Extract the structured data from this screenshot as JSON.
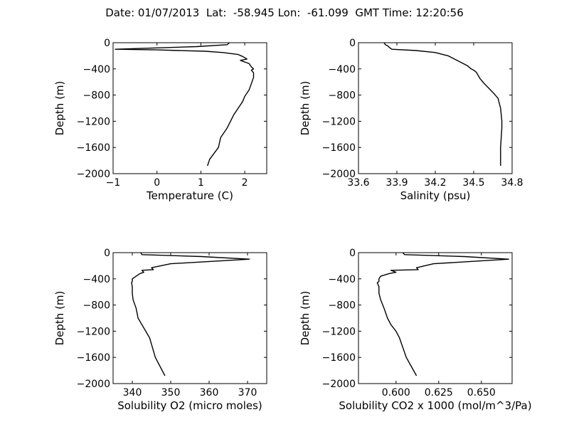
{
  "title": "Date: 01/07/2013  Lat:  -58.945 Lon:  -61.099  GMT Time: 12:20:56",
  "chart_data": [
    {
      "type": "line",
      "xlabel": "Temperature (C)",
      "ylabel": "Depth (m)",
      "xlim": [
        -1,
        2.5
      ],
      "ylim": [
        -2000,
        0
      ],
      "xticks": [
        -1,
        0,
        1,
        2
      ],
      "xtick_labels": [
        "−1",
        "0",
        "1",
        "2"
      ],
      "yticks": [
        0,
        -400,
        -800,
        -1200,
        -1600,
        -2000
      ],
      "ytick_labels": [
        "0",
        "−400",
        "−800",
        "−1200",
        "−1600",
        "−2000"
      ],
      "x": [
        1.65,
        1.6,
        0.9,
        -0.95,
        0.0,
        0.5,
        1.1,
        1.5,
        1.85,
        1.95,
        2.05,
        1.9,
        2.1,
        2.15,
        2.2,
        2.15,
        2.2,
        2.2,
        2.1,
        2.0,
        1.95,
        1.85,
        1.75,
        1.6,
        1.45,
        1.4,
        1.2,
        1.15
      ],
      "y": [
        0,
        -30,
        -60,
        -100,
        -110,
        -120,
        -130,
        -150,
        -180,
        -210,
        -250,
        -270,
        -320,
        -370,
        -400,
        -420,
        -460,
        -530,
        -720,
        -820,
        -900,
        -1000,
        -1100,
        -1300,
        -1450,
        -1600,
        -1780,
        -1880
      ]
    },
    {
      "type": "line",
      "xlabel": "Salinity (psu)",
      "ylabel": "Depth (m)",
      "xlim": [
        33.6,
        34.8
      ],
      "ylim": [
        -2000,
        0
      ],
      "xticks": [
        33.6,
        33.9,
        34.2,
        34.5,
        34.8
      ],
      "xtick_labels": [
        "33.6",
        "33.9",
        "34.2",
        "34.5",
        "34.8"
      ],
      "yticks": [
        0,
        -400,
        -800,
        -1200,
        -1600,
        -2000
      ],
      "ytick_labels": [
        "0",
        "−400",
        "−800",
        "−1200",
        "−1600",
        "−2000"
      ],
      "x": [
        33.8,
        33.81,
        33.83,
        33.84,
        33.86,
        34.05,
        34.2,
        34.3,
        34.35,
        34.4,
        34.45,
        34.48,
        34.5,
        34.52,
        34.55,
        34.58,
        34.62,
        34.66,
        34.69,
        34.71,
        34.72,
        34.72,
        34.71,
        34.71
      ],
      "y": [
        0,
        -30,
        -50,
        -70,
        -100,
        -120,
        -150,
        -200,
        -250,
        -300,
        -350,
        -400,
        -420,
        -450,
        -550,
        -620,
        -700,
        -780,
        -850,
        -1000,
        -1200,
        -1300,
        -1600,
        -1880
      ]
    },
    {
      "type": "line",
      "xlabel": "Solubility O2 (micro moles)",
      "ylabel": "Depth (m)",
      "xlim": [
        335,
        375
      ],
      "ylim": [
        -2000,
        0
      ],
      "xticks": [
        340,
        350,
        360,
        370
      ],
      "xtick_labels": [
        "340",
        "350",
        "360",
        "370"
      ],
      "yticks": [
        0,
        -400,
        -800,
        -1200,
        -1600,
        -2000
      ],
      "ytick_labels": [
        "0",
        "−400",
        "−800",
        "−1200",
        "−1600",
        "−2000"
      ],
      "x": [
        342.2,
        342.5,
        358,
        370.5,
        350,
        345,
        345.5,
        342.5,
        343,
        342,
        341,
        340,
        340,
        339.8,
        340,
        340,
        340.2,
        341,
        341.5,
        342.5,
        343.5,
        344.5,
        346,
        348.5
      ],
      "y": [
        0,
        -30,
        -60,
        -100,
        -170,
        -230,
        -260,
        -270,
        -300,
        -320,
        -360,
        -400,
        -440,
        -460,
        -520,
        -620,
        -720,
        -850,
        -1000,
        -1100,
        -1200,
        -1300,
        -1600,
        -1880
      ]
    },
    {
      "type": "line",
      "xlabel": "Solubility CO2 x 1000 (mol/m^3/Pa)",
      "ylabel": "Depth (m)",
      "xlim": [
        0.578,
        0.668
      ],
      "ylim": [
        -2000,
        0
      ],
      "xticks": [
        0.6,
        0.625,
        0.65
      ],
      "xtick_labels": [
        "0.600",
        "0.625",
        "0.650"
      ],
      "yticks": [
        0,
        -400,
        -800,
        -1200,
        -1600,
        -2000
      ],
      "ytick_labels": [
        "0",
        "−400",
        "−800",
        "−1200",
        "−1600",
        "−2000"
      ],
      "x": [
        0.604,
        0.605,
        0.64,
        0.666,
        0.622,
        0.612,
        0.613,
        0.597,
        0.6,
        0.596,
        0.591,
        0.59,
        0.59,
        0.589,
        0.59,
        0.59,
        0.591,
        0.593,
        0.595,
        0.597,
        0.6,
        0.602,
        0.606,
        0.612
      ],
      "y": [
        0,
        -30,
        -60,
        -100,
        -170,
        -230,
        -260,
        -270,
        -300,
        -320,
        -360,
        -400,
        -440,
        -460,
        -520,
        -620,
        -720,
        -850,
        -1000,
        -1100,
        -1200,
        -1300,
        -1600,
        -1880
      ]
    }
  ]
}
